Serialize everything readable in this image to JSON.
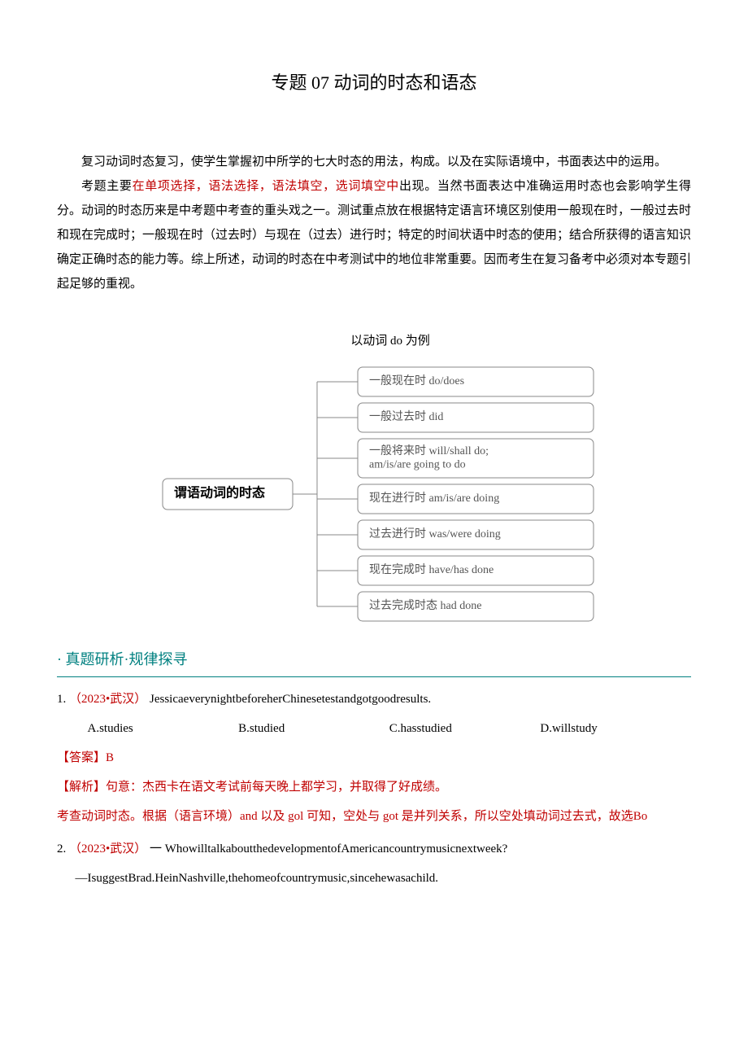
{
  "title": "专题 07 动词的时态和语态",
  "intro": {
    "p1": "复习动词时态复习，使学生掌握初中所学的七大时态的用法，构成。以及在实际语境中，书面表达中的运用。",
    "p2_a": "考题主要",
    "p2_b": "在单项选择，语法选择，语法填空，选词填空中",
    "p2_c": "出现。当然书面表达中准确运用时态也会影响学生得分。动词的时态历来是中考题中考查的重头戏之一。测试重点放在根据特定语言环境区别使用一般现在时，一般过去时和现在完成时；一般现在时（过去时）与现在（过去）进行时；特定的时间状语中时态的使用；结合所获得的语言知识确定正确时态的能力等。综上所述，动词的时态在中考测试中的地位非常重要。因而考生在复习备考中必须对本专题引起足够的重视。"
  },
  "diagram": {
    "caption": "以动词 do 为例",
    "root": "谓语动词的时态",
    "items": [
      "一般现在时  do/does",
      "一般过去时  did",
      "一般将来时  will/shall do;\nam/is/are going to do",
      "现在进行时  am/is/are doing",
      "过去进行时  was/were doing",
      "现在完成时  have/has done",
      "过去完成时态  had done"
    ],
    "box_stroke": "#888888",
    "box_fill": "#ffffff",
    "line_stroke": "#888888",
    "text_color": "#555555",
    "root_text_color": "#000000",
    "fontsize": 14
  },
  "section_header": "· 真题研析·规律探寻",
  "q1": {
    "num": "1.",
    "source": "（2023•武汉）",
    "text": "JessicaeverynightbeforeherChinesetestandgotgoodresults.",
    "opts": {
      "a": "A.studies",
      "b": "B.studied",
      "c": "C.hasstudied",
      "d": "D.willstudy"
    },
    "answer_label": "【答案】B",
    "analysis_label": "【解析】句意：杰西卡在语文考试前每天晚上都学习，并取得了好成绩。",
    "analysis_body": "考查动词时态。根据（语言环境）and 以及 gol 可知，空处与 got 是并列关系，所以空处填动词过去式，故选Bo"
  },
  "q2": {
    "num": "2.",
    "source": "（2023•武汉）",
    "line1": "一 WhowilltalkaboutthedevelopmentofAmericancountrymusicnextweek?",
    "line2": "—IsuggestBrad.HeinNashville,thehomeofcountrymusic,sincehewasachild."
  }
}
